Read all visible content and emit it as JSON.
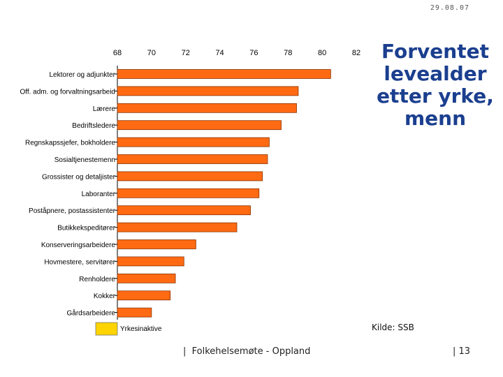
{
  "header": {
    "date": "29.08.07"
  },
  "title_lines": [
    "Forventet",
    "levealder",
    "etter yrke,",
    "menn"
  ],
  "source": "Kilde: SSB",
  "footer": {
    "text": "Folkehelsemøte - Oppland",
    "page": "13"
  },
  "colors": {
    "bar": "#ff6a13",
    "bar_edge": "#8a3300",
    "highlight": "#ffd400",
    "title": "#1b3f8f"
  },
  "chart_data": {
    "type": "bar",
    "orientation": "horizontal",
    "xlim": [
      68,
      82
    ],
    "x_ticks": [
      68,
      70,
      72,
      74,
      76,
      78,
      80,
      82
    ],
    "axis_position": "top",
    "categories": [
      "Lektorer og adjunkter",
      "Off. adm. og forvaltningsarbeid",
      "Lærere",
      "Bedriftsledere",
      "Regnskapssjefer, bokholdere",
      "Sosialtjenestemenn",
      "Grossister og detaljister",
      "Laboranter",
      "Poståpnere, postassistenter",
      "Butikkekspeditører",
      "Konserveringsarbeidere",
      "Hovmestere, servitører",
      "Renholdere",
      "Kokker",
      "Gårdsarbeidere"
    ],
    "values": [
      80.5,
      78.6,
      78.5,
      77.6,
      76.9,
      76.8,
      76.5,
      76.3,
      75.8,
      75.0,
      72.6,
      71.9,
      71.4,
      71.1,
      70.0
    ],
    "extra_category": {
      "label": "Yrkesinaktive",
      "legend_style": "highlighted"
    }
  }
}
